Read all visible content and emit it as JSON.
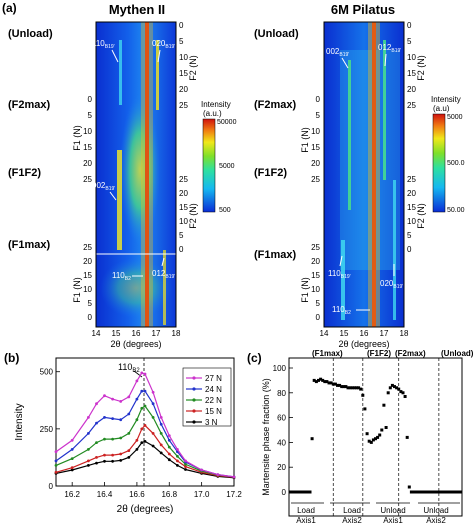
{
  "panel_labels": {
    "a": "(a)",
    "b": "(b)",
    "c": "(c)"
  },
  "stage_labels": [
    "(Unload)",
    "(F2max)",
    "(F1F2)",
    "(F1max)"
  ],
  "chart_data": [
    {
      "type": "heatmap",
      "title": "Mythen II",
      "xlabel": "2θ (degrees)",
      "xticks": [
        "14",
        "15",
        "16",
        "17",
        "18"
      ],
      "xlim": [
        14,
        18
      ],
      "left_axis": {
        "label": "F1 (N)",
        "upper_ticks": [
          "0",
          "5",
          "10",
          "15",
          "20",
          "25"
        ],
        "lower_ticks": [
          "25",
          "20",
          "15",
          "10",
          "5",
          "0"
        ]
      },
      "right_axis": {
        "label": "F2 (N)",
        "upper_ticks": [
          "0",
          "5",
          "10",
          "15",
          "20",
          "25"
        ],
        "lower_ticks": [
          "25",
          "20",
          "15",
          "10",
          "5",
          "0"
        ]
      },
      "colorbar": {
        "title": "Intensity",
        "unit": "(a.u.)",
        "scale": "log",
        "ticks": [
          "50000",
          "5000",
          "500"
        ]
      },
      "peak_labels": {
        "p110b19": {
          "main": "110",
          "sub": "B19'"
        },
        "p020b19": {
          "main": "020",
          "sub": "B19'"
        },
        "p002b19": {
          "main": "002",
          "sub": "B19'"
        },
        "p110b2": {
          "main": "110",
          "sub": "B2"
        },
        "p012b19": {
          "main": "012",
          "sub": "B19'"
        }
      }
    },
    {
      "type": "heatmap",
      "title": "6M Pilatus",
      "xlabel": "2θ (degrees)",
      "xticks": [
        "14",
        "15",
        "16",
        "17",
        "18"
      ],
      "xlim": [
        14,
        18
      ],
      "left_axis": {
        "label": "F1 (N)",
        "upper_ticks": [
          "0",
          "5",
          "10",
          "15",
          "20",
          "25"
        ],
        "lower_ticks": [
          "25",
          "20",
          "15",
          "10",
          "5",
          "0"
        ]
      },
      "right_axis": {
        "label": "F2 (N)",
        "upper_ticks": [
          "0",
          "5",
          "10",
          "15",
          "20",
          "25"
        ],
        "lower_ticks": [
          "25",
          "20",
          "15",
          "10",
          "5",
          "0"
        ]
      },
      "colorbar": {
        "title": "Intensity",
        "unit": "(a.u)",
        "scale": "log",
        "ticks": [
          "5000",
          "500.0",
          "50.00"
        ]
      },
      "peak_labels": {
        "p002b19": {
          "main": "002",
          "sub": "B19'"
        },
        "p012b19": {
          "main": "012",
          "sub": "B19'"
        },
        "p110b19": {
          "main": "110",
          "sub": "B19'"
        },
        "p020b19": {
          "main": "020",
          "sub": "B19'"
        },
        "p110b2": {
          "main": "110",
          "sub": "B2"
        }
      }
    },
    {
      "type": "line",
      "xlabel": "2θ (degrees)",
      "ylabel": "Intensity",
      "xlim": [
        16.1,
        17.2
      ],
      "ylim": [
        0,
        560
      ],
      "xticks": [
        "16.2",
        "16.4",
        "16.6",
        "16.8",
        "17.0",
        "17.2"
      ],
      "yticks": [
        "0",
        "250",
        "500"
      ],
      "annotation": {
        "main": "110",
        "sub": "B2"
      },
      "legend_position": "top-right",
      "series": [
        {
          "name": "27 N",
          "color": "#cc33cc",
          "x": [
            16.1,
            16.2,
            16.3,
            16.35,
            16.4,
            16.45,
            16.5,
            16.55,
            16.6,
            16.63,
            16.65,
            16.7,
            16.75,
            16.8,
            16.85,
            16.9,
            17.0,
            17.1,
            17.2
          ],
          "y": [
            150,
            200,
            300,
            360,
            395,
            380,
            370,
            390,
            460,
            495,
            490,
            410,
            300,
            220,
            160,
            110,
            70,
            50,
            40
          ]
        },
        {
          "name": "24 N",
          "color": "#2233cc",
          "x": [
            16.1,
            16.2,
            16.3,
            16.35,
            16.4,
            16.45,
            16.5,
            16.55,
            16.6,
            16.63,
            16.65,
            16.7,
            16.75,
            16.8,
            16.85,
            16.9,
            17.0,
            17.1,
            17.2
          ],
          "y": [
            110,
            160,
            230,
            275,
            300,
            295,
            290,
            315,
            380,
            415,
            415,
            360,
            270,
            200,
            150,
            105,
            70,
            50,
            40
          ]
        },
        {
          "name": "22 N",
          "color": "#228b22",
          "x": [
            16.1,
            16.2,
            16.3,
            16.35,
            16.4,
            16.45,
            16.5,
            16.55,
            16.6,
            16.63,
            16.65,
            16.7,
            16.75,
            16.8,
            16.85,
            16.9,
            17.0,
            17.1,
            17.2
          ],
          "y": [
            90,
            120,
            160,
            190,
            205,
            205,
            210,
            230,
            290,
            340,
            350,
            300,
            230,
            170,
            130,
            95,
            65,
            48,
            40
          ]
        },
        {
          "name": "15 N",
          "color": "#cc2222",
          "x": [
            16.1,
            16.2,
            16.3,
            16.35,
            16.4,
            16.45,
            16.5,
            16.55,
            16.6,
            16.63,
            16.65,
            16.7,
            16.75,
            16.8,
            16.85,
            16.9,
            17.0,
            17.1,
            17.2
          ],
          "y": [
            60,
            80,
            110,
            125,
            135,
            135,
            140,
            155,
            200,
            250,
            265,
            230,
            180,
            140,
            110,
            85,
            60,
            45,
            38
          ]
        },
        {
          "name": "3  N",
          "color": "#000000",
          "x": [
            16.1,
            16.2,
            16.3,
            16.35,
            16.4,
            16.45,
            16.5,
            16.55,
            16.6,
            16.63,
            16.65,
            16.7,
            16.75,
            16.8,
            16.85,
            16.9,
            17.0,
            17.1,
            17.2
          ],
          "y": [
            55,
            70,
            90,
            100,
            108,
            108,
            112,
            125,
            160,
            190,
            195,
            175,
            145,
            115,
            90,
            72,
            55,
            42,
            36
          ]
        }
      ]
    },
    {
      "type": "scatter",
      "ylabel": "Martensite phase fraction (%)",
      "ylim": [
        0,
        100
      ],
      "yticks": [
        "0",
        "20",
        "40",
        "60",
        "80",
        "100"
      ],
      "stage_markers": [
        "(F1max)",
        "(F1F2)",
        "(F2max)",
        "(Unload)"
      ],
      "segments": [
        {
          "main": "Load",
          "sub": "Axis1"
        },
        {
          "main": "Load",
          "sub": "Axis2"
        },
        {
          "main": "Unload",
          "sub": "Axis1"
        },
        {
          "main": "Unload",
          "sub": "Axis2"
        }
      ],
      "x": [
        0,
        1,
        2,
        3,
        4,
        5,
        6,
        7,
        8,
        9,
        10,
        11,
        12,
        13,
        14,
        15,
        16,
        17,
        18,
        19,
        20,
        21,
        22,
        23,
        24,
        25,
        26,
        27,
        28,
        29,
        30,
        31,
        32,
        33,
        34,
        35,
        36,
        37,
        38,
        39,
        40,
        41,
        42,
        43,
        44,
        45,
        46,
        47,
        48,
        49,
        50,
        51,
        52,
        53,
        54,
        55,
        56,
        57,
        58,
        59,
        60,
        61,
        62,
        63,
        64,
        65,
        66,
        67,
        68,
        69,
        70,
        71,
        72,
        73,
        74,
        75,
        76,
        77,
        78,
        79,
        80
      ],
      "y": [
        0,
        0,
        0,
        0,
        0,
        0,
        0,
        0,
        0,
        0,
        43,
        90,
        89,
        90,
        91,
        90,
        89,
        89,
        88,
        88,
        87,
        87,
        86,
        86,
        85,
        85,
        85,
        84,
        84,
        84,
        84,
        84,
        84,
        83,
        78,
        67,
        47,
        41,
        40,
        42,
        43,
        44,
        46,
        50,
        70,
        52,
        80,
        84,
        86,
        85,
        84,
        83,
        81,
        80,
        77,
        44,
        4,
        0,
        0,
        0,
        0,
        0,
        0,
        0,
        0,
        0,
        0,
        0,
        0,
        0,
        0,
        0,
        0,
        0,
        0,
        0,
        0,
        0,
        0,
        0,
        0
      ],
      "dividers_x": [
        20,
        34,
        51,
        70
      ]
    }
  ]
}
